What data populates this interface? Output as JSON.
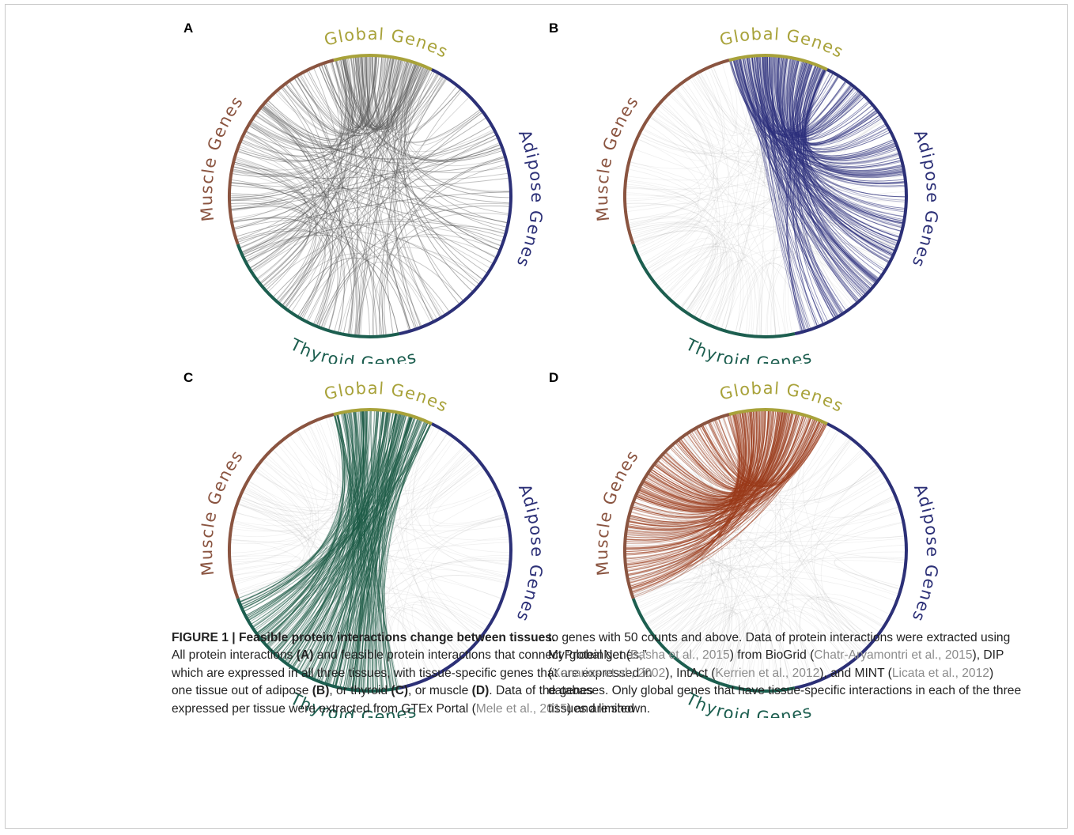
{
  "colors": {
    "global": "#a8a23a",
    "adipose": "#2c3077",
    "thyroid": "#1c5e4f",
    "muscle": "#8a5440",
    "all": "#555555",
    "panel_b": "#2c2f7c",
    "panel_c": "#1b5a45",
    "panel_d": "#9a3a1a"
  },
  "arc_labels": {
    "global": "Global Genes",
    "adipose": "Adipose Genes",
    "thyroid": "Thyroid Genes",
    "muscle": "Muscle Genes"
  },
  "panels": [
    {
      "label": "A",
      "highlight": "all"
    },
    {
      "label": "B",
      "highlight": "adipose"
    },
    {
      "label": "C",
      "highlight": "thyroid"
    },
    {
      "label": "D",
      "highlight": "muscle"
    }
  ],
  "caption": {
    "title": "FIGURE 1 | Feasible protein interactions change between tissues.",
    "left": [
      {
        "t": "All protein interactions ",
        "s": ""
      },
      {
        "t": "(A)",
        "s": "b"
      },
      {
        "t": " and feasible protein interactions that connect “global genes,” which are expressed in all three tissues, with tissue-specific genes that are expressed in one tissue out of adipose ",
        "s": ""
      },
      {
        "t": "(B)",
        "s": "b"
      },
      {
        "t": ", or thyroid ",
        "s": ""
      },
      {
        "t": "(C)",
        "s": "b"
      },
      {
        "t": ", or muscle ",
        "s": ""
      },
      {
        "t": "(D)",
        "s": "b"
      },
      {
        "t": ". Data of the genes expressed per tissue were extracted from GTEx Portal (",
        "s": ""
      },
      {
        "t": "Mele et al., 2015",
        "s": "ref"
      },
      {
        "t": ") and limited",
        "s": ""
      }
    ],
    "right": [
      {
        "t": "to genes with 50 counts and above. Data of protein interactions were extracted using MyProteinNet (",
        "s": ""
      },
      {
        "t": "Basha et al., 2015",
        "s": "ref"
      },
      {
        "t": ") from BioGrid (",
        "s": ""
      },
      {
        "t": "Chatr-Aryamontri et al., 2015",
        "s": "ref"
      },
      {
        "t": "), DIP (",
        "s": ""
      },
      {
        "t": "Xenarios et al., 2002",
        "s": "ref"
      },
      {
        "t": "), IntAct (",
        "s": ""
      },
      {
        "t": "Kerrien et al., 2012",
        "s": "ref"
      },
      {
        "t": "), and MINT (",
        "s": ""
      },
      {
        "t": "Licata et al., 2012",
        "s": "ref"
      },
      {
        "t": ") databases. Only global genes that have tissue-specific interactions in each of the three tissues are shown.",
        "s": ""
      }
    ]
  }
}
